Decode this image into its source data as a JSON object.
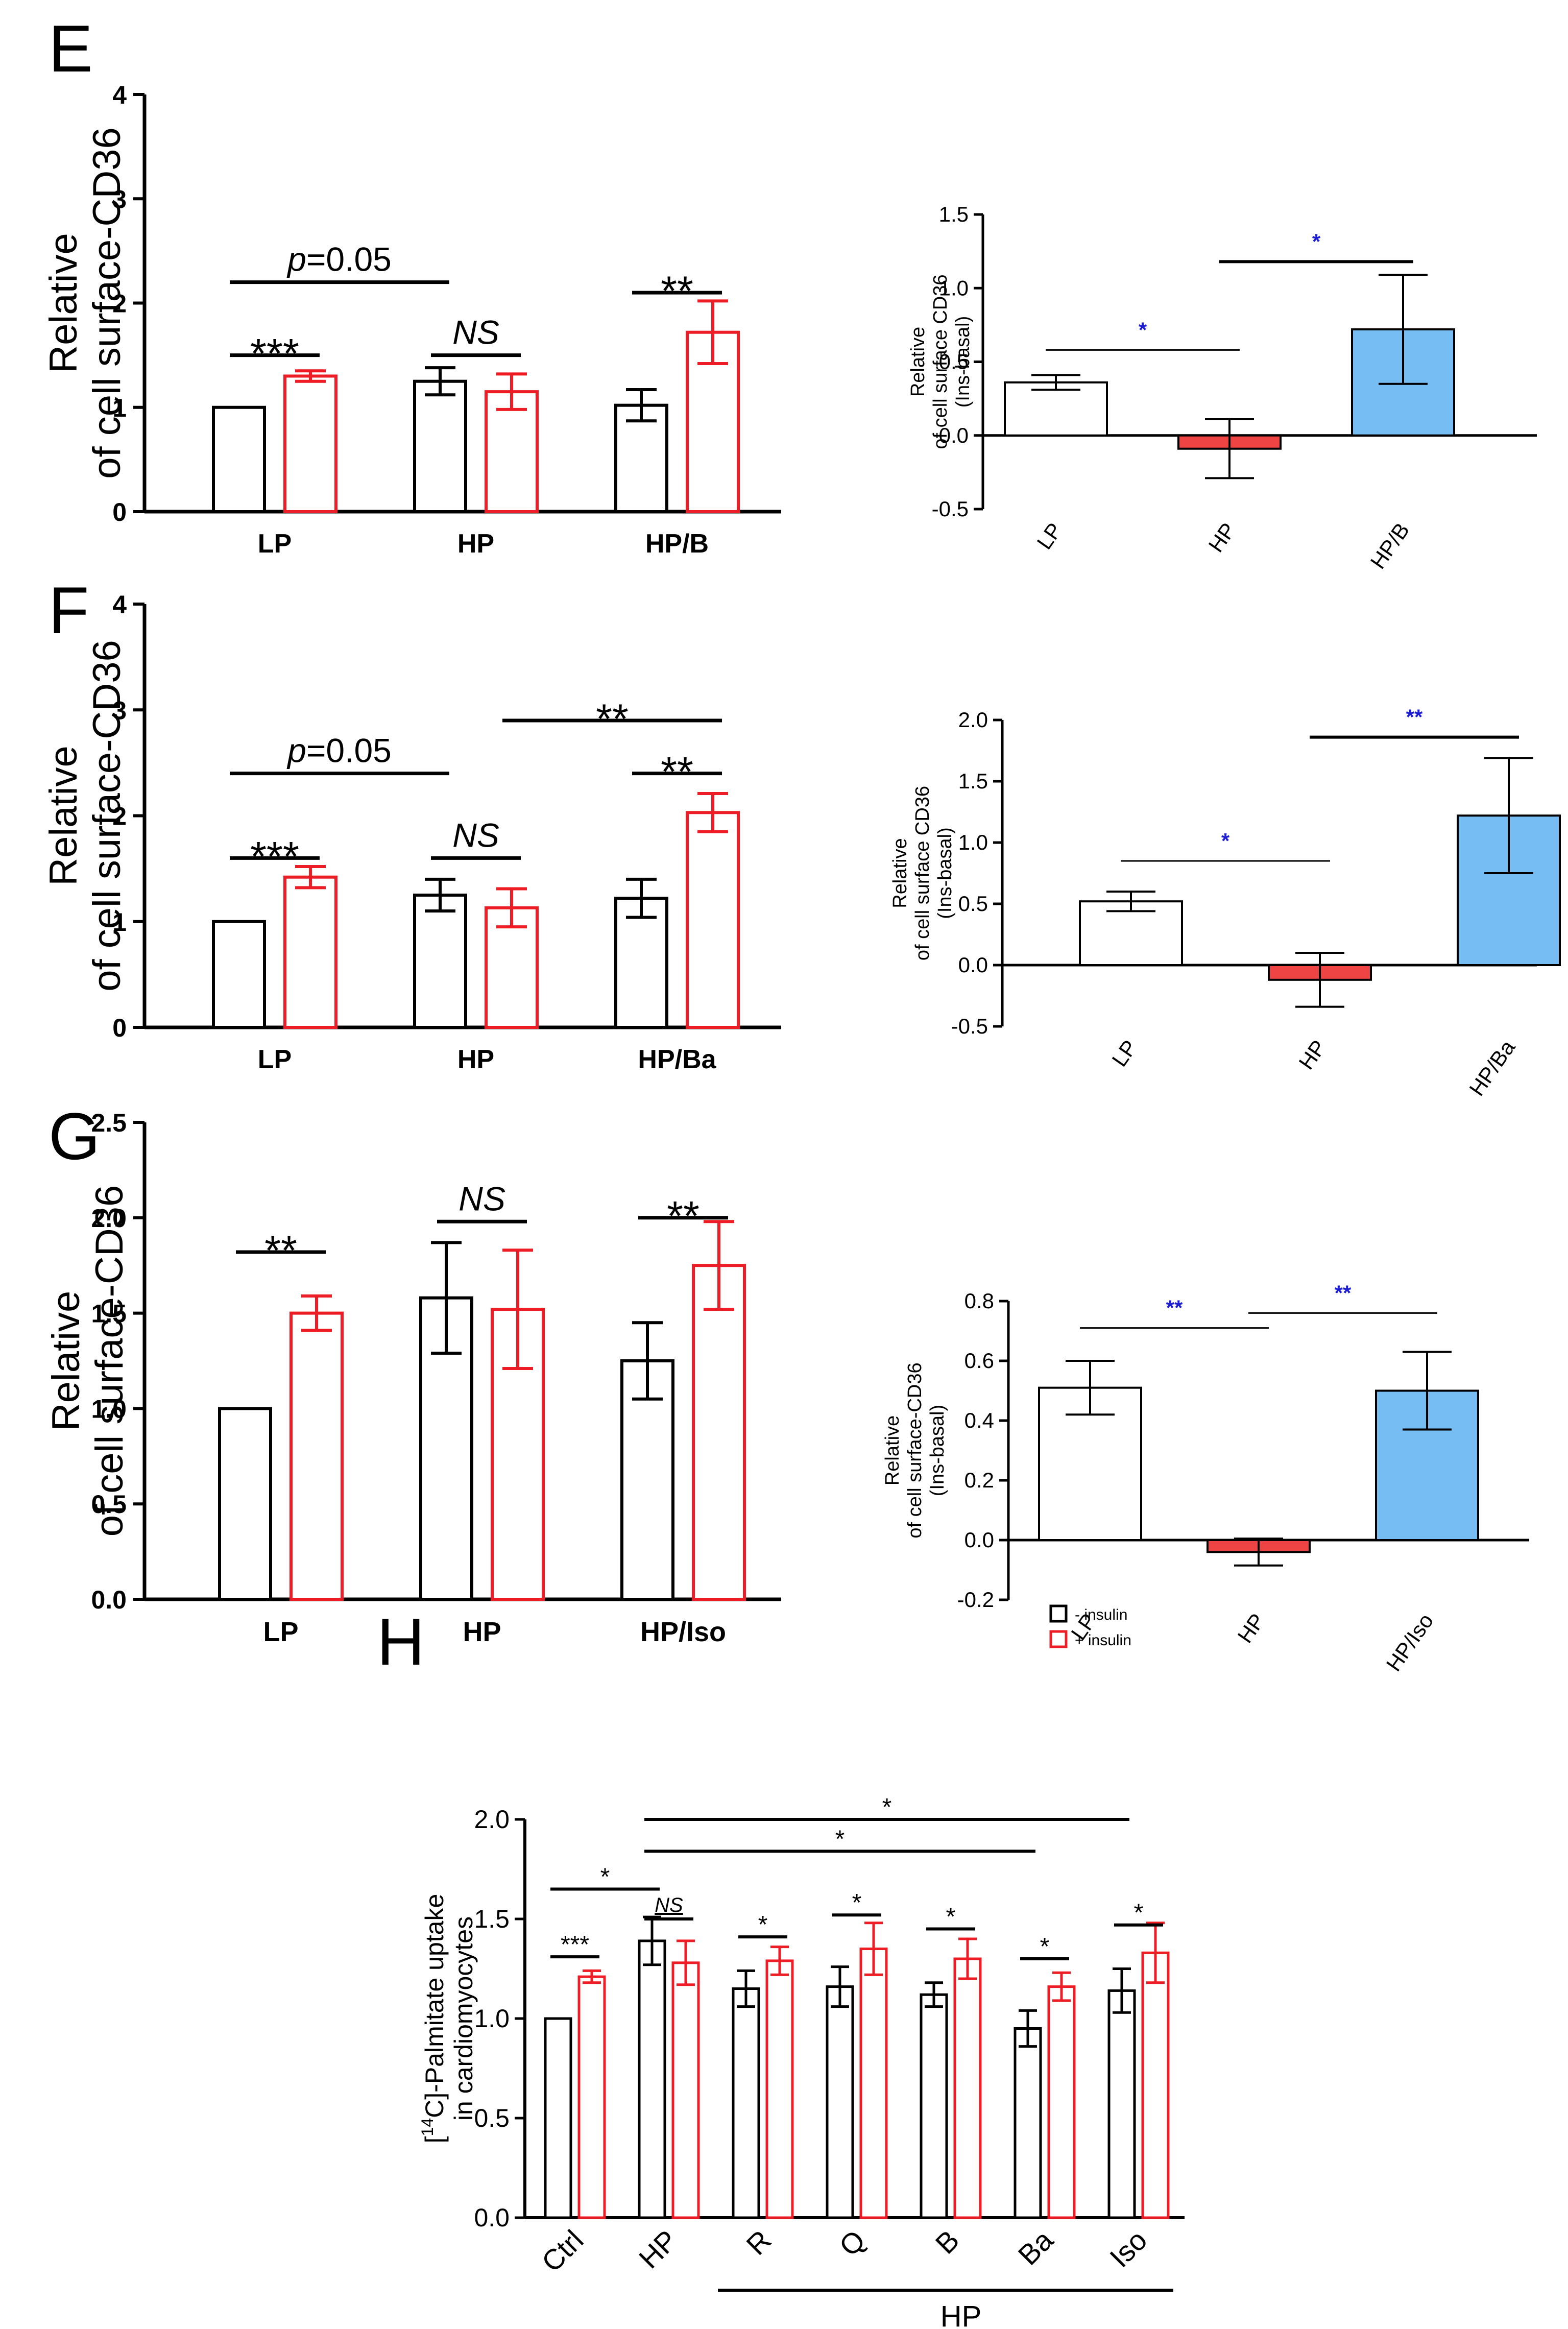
{
  "colors": {
    "black": "#000000",
    "red": "#ee1c24",
    "red_fill": "#ef4444",
    "blue_fill": "#75bdf2",
    "sig_blue": "#1d1dd6",
    "white": "#ffffff"
  },
  "chart_data": [
    {
      "panel": "E",
      "type": "bar",
      "ylabel": [
        "Relative",
        "of cell surface-CD36"
      ],
      "ylim": [
        0,
        4
      ],
      "yticks": [
        "0",
        "1",
        "2",
        "3",
        "4"
      ],
      "categories": [
        "LP",
        "HP",
        "HP/B"
      ],
      "series": [
        {
          "name": "- insulin",
          "color": "black",
          "values": [
            1.0,
            1.25,
            1.02
          ],
          "errors": [
            0,
            0.13,
            0.15
          ]
        },
        {
          "name": "+ insulin",
          "color": "red",
          "values": [
            1.3,
            1.15,
            1.72
          ],
          "errors": [
            0.05,
            0.17,
            0.3
          ]
        }
      ],
      "annotations": [
        {
          "label": "***",
          "italic": false,
          "from": [
            0,
            0
          ],
          "to": [
            0,
            1
          ],
          "y": 1.5
        },
        {
          "label": "p=0.05",
          "italic": "p",
          "from": [
            0,
            0
          ],
          "to": [
            1,
            0
          ],
          "y": 2.2
        },
        {
          "label": "NS",
          "italic": true,
          "from": [
            1,
            0
          ],
          "to": [
            1,
            1
          ],
          "y": 1.5
        },
        {
          "label": "**",
          "italic": false,
          "from": [
            2,
            0
          ],
          "to": [
            2,
            1
          ],
          "y": 2.1
        }
      ]
    },
    {
      "panel": "E",
      "type": "bar",
      "ylabel": [
        "Relative",
        "of cell surface CD36",
        "(Ins-basal)"
      ],
      "ylim": [
        -0.5,
        1.5
      ],
      "yticks": [
        "-0.5",
        "0.0",
        "0.5",
        "1.0",
        "1.5"
      ],
      "categories": [
        "LP",
        "HP",
        "HP/B"
      ],
      "values": [
        0.36,
        -0.09,
        0.72
      ],
      "errors": [
        0.05,
        0.2,
        0.37
      ],
      "fills": [
        "white",
        "red_fill",
        "blue_fill"
      ],
      "annotations": [
        {
          "label": "*",
          "from": 0,
          "to": 1,
          "y": 0.58,
          "thin": true
        },
        {
          "label": "*",
          "from": 1,
          "to": 2,
          "y": 1.18,
          "thin": false
        }
      ]
    },
    {
      "panel": "F",
      "type": "bar",
      "ylabel": [
        "Relative",
        "of cell surface-CD36"
      ],
      "ylim": [
        0,
        4
      ],
      "yticks": [
        "0",
        "1",
        "2",
        "3",
        "4"
      ],
      "categories": [
        "LP",
        "HP",
        "HP/Ba"
      ],
      "series": [
        {
          "name": "- insulin",
          "color": "black",
          "values": [
            1.0,
            1.25,
            1.22
          ],
          "errors": [
            0,
            0.15,
            0.18
          ]
        },
        {
          "name": "+ insulin",
          "color": "red",
          "values": [
            1.42,
            1.13,
            2.03
          ],
          "errors": [
            0.1,
            0.18,
            0.18
          ]
        }
      ],
      "annotations": [
        {
          "label": "***",
          "italic": false,
          "from": [
            0,
            0
          ],
          "to": [
            0,
            1
          ],
          "y": 1.6
        },
        {
          "label": "p=0.05",
          "italic": "p",
          "from": [
            0,
            0
          ],
          "to": [
            1,
            0
          ],
          "y": 2.4
        },
        {
          "label": "NS",
          "italic": true,
          "from": [
            1,
            0
          ],
          "to": [
            1,
            1
          ],
          "y": 1.6
        },
        {
          "label": "**",
          "italic": false,
          "from": [
            2,
            0
          ],
          "to": [
            2,
            1
          ],
          "y": 2.4
        },
        {
          "label": "**",
          "italic": false,
          "from": [
            1,
            1
          ],
          "to": [
            2,
            1
          ],
          "y": 2.9
        }
      ]
    },
    {
      "panel": "F",
      "type": "bar",
      "ylabel": [
        "Relative",
        "of cell surface CD36",
        "(Ins-basal)"
      ],
      "ylim": [
        -0.5,
        2.0
      ],
      "yticks": [
        "-0.5",
        "0.0",
        "0.5",
        "1.0",
        "1.5",
        "2.0"
      ],
      "categories": [
        "LP",
        "HP",
        "HP/Ba"
      ],
      "values": [
        0.52,
        -0.12,
        1.22
      ],
      "errors": [
        0.08,
        0.22,
        0.47
      ],
      "fills": [
        "white",
        "red_fill",
        "blue_fill"
      ],
      "annotations": [
        {
          "label": "*",
          "from": 0,
          "to": 1,
          "y": 0.85,
          "thin": true
        },
        {
          "label": "**",
          "from": 1,
          "to": 2,
          "y": 1.86,
          "thin": false
        }
      ]
    },
    {
      "panel": "G",
      "type": "bar",
      "ylabel": [
        "Relative",
        "of cell surface-CD36"
      ],
      "ylim": [
        0,
        2.5
      ],
      "yticks": [
        "0.0",
        "0.5",
        "1.0",
        "1.5",
        "2.0",
        "2.5"
      ],
      "categories": [
        "LP",
        "HP",
        "HP/Iso"
      ],
      "series": [
        {
          "name": "- insulin",
          "color": "black",
          "values": [
            1.0,
            1.58,
            1.25
          ],
          "errors": [
            0,
            0.29,
            0.2
          ]
        },
        {
          "name": "+ insulin",
          "color": "red",
          "values": [
            1.5,
            1.52,
            1.75
          ],
          "errors": [
            0.09,
            0.31,
            0.23
          ]
        }
      ],
      "annotations": [
        {
          "label": "**",
          "italic": false,
          "from": [
            0,
            0
          ],
          "to": [
            0,
            1
          ],
          "y": 1.82
        },
        {
          "label": "NS",
          "italic": true,
          "from": [
            1,
            0
          ],
          "to": [
            1,
            1
          ],
          "y": 1.98
        },
        {
          "label": "**",
          "italic": false,
          "from": [
            2,
            0
          ],
          "to": [
            2,
            1
          ],
          "y": 2.0
        }
      ]
    },
    {
      "panel": "G",
      "type": "bar",
      "ylabel": [
        "Relative",
        "of cell surface-CD36",
        "(Ins-basal)"
      ],
      "ylim": [
        -0.2,
        0.8
      ],
      "yticks": [
        "-0.2",
        "0.0",
        "0.2",
        "0.4",
        "0.6",
        "0.8"
      ],
      "categories": [
        "LP",
        "HP",
        "HP/Iso"
      ],
      "values": [
        0.51,
        -0.04,
        0.5
      ],
      "errors": [
        0.09,
        0.045,
        0.13
      ],
      "fills": [
        "white",
        "red_fill",
        "blue_fill"
      ],
      "annotations": [
        {
          "label": "**",
          "from": 0,
          "to": 1,
          "y": 0.71,
          "thin": true
        },
        {
          "label": "**",
          "from": 1,
          "to": 2,
          "y": 0.76,
          "thin": true
        }
      ]
    },
    {
      "panel": "H",
      "type": "bar",
      "ylabel": "in cardiomyocytes",
      "ylabel_prefix": "[",
      "ylabel_sup": "14",
      "ylabel_rest": "C]-Palmitate uptake",
      "ylim": [
        0,
        2.0
      ],
      "yticks": [
        "0.0",
        "0.5",
        "1.0",
        "1.5",
        "2.0"
      ],
      "categories": [
        "Ctrl",
        "HP",
        "R",
        "Q",
        "B",
        "Ba",
        "Iso"
      ],
      "group_label": "HP",
      "legend": [
        "- insulin",
        "+ insulin"
      ],
      "series": [
        {
          "name": "- insulin",
          "color": "black",
          "values": [
            1.0,
            1.39,
            1.15,
            1.16,
            1.12,
            0.95,
            1.14
          ],
          "errors": [
            0,
            0.12,
            0.09,
            0.1,
            0.06,
            0.09,
            0.11
          ]
        },
        {
          "name": "+ insulin",
          "color": "red",
          "values": [
            1.21,
            1.28,
            1.29,
            1.35,
            1.3,
            1.16,
            1.33
          ],
          "errors": [
            0.03,
            0.11,
            0.07,
            0.13,
            0.1,
            0.07,
            0.15
          ]
        }
      ],
      "annotations": [
        {
          "label": "***",
          "italic": false,
          "from": [
            0,
            0
          ],
          "to": [
            0,
            1
          ],
          "y": 1.31
        },
        {
          "label": "*",
          "italic": false,
          "from": [
            0,
            0
          ],
          "to": [
            1,
            0
          ],
          "y": 1.65
        },
        {
          "label": "NS",
          "italic": "underline",
          "from": [
            1,
            0
          ],
          "to": [
            1,
            1
          ],
          "y": 1.5
        },
        {
          "label": "*",
          "italic": false,
          "from": [
            2,
            0
          ],
          "to": [
            2,
            1
          ],
          "y": 1.41
        },
        {
          "label": "*",
          "italic": false,
          "from": [
            3,
            0
          ],
          "to": [
            3,
            1
          ],
          "y": 1.52
        },
        {
          "label": "*",
          "italic": false,
          "from": [
            4,
            0
          ],
          "to": [
            4,
            1
          ],
          "y": 1.45
        },
        {
          "label": "*",
          "italic": false,
          "from": [
            5,
            0
          ],
          "to": [
            5,
            1
          ],
          "y": 1.3
        },
        {
          "label": "*",
          "italic": false,
          "from": [
            6,
            0
          ],
          "to": [
            6,
            1
          ],
          "y": 1.47
        },
        {
          "label": "*",
          "italic": false,
          "from": [
            1,
            0
          ],
          "to": [
            5,
            0
          ],
          "y": 1.84
        },
        {
          "label": "*",
          "italic": false,
          "from": [
            1,
            0
          ],
          "to": [
            6,
            0
          ],
          "y": 2.0
        }
      ]
    }
  ]
}
